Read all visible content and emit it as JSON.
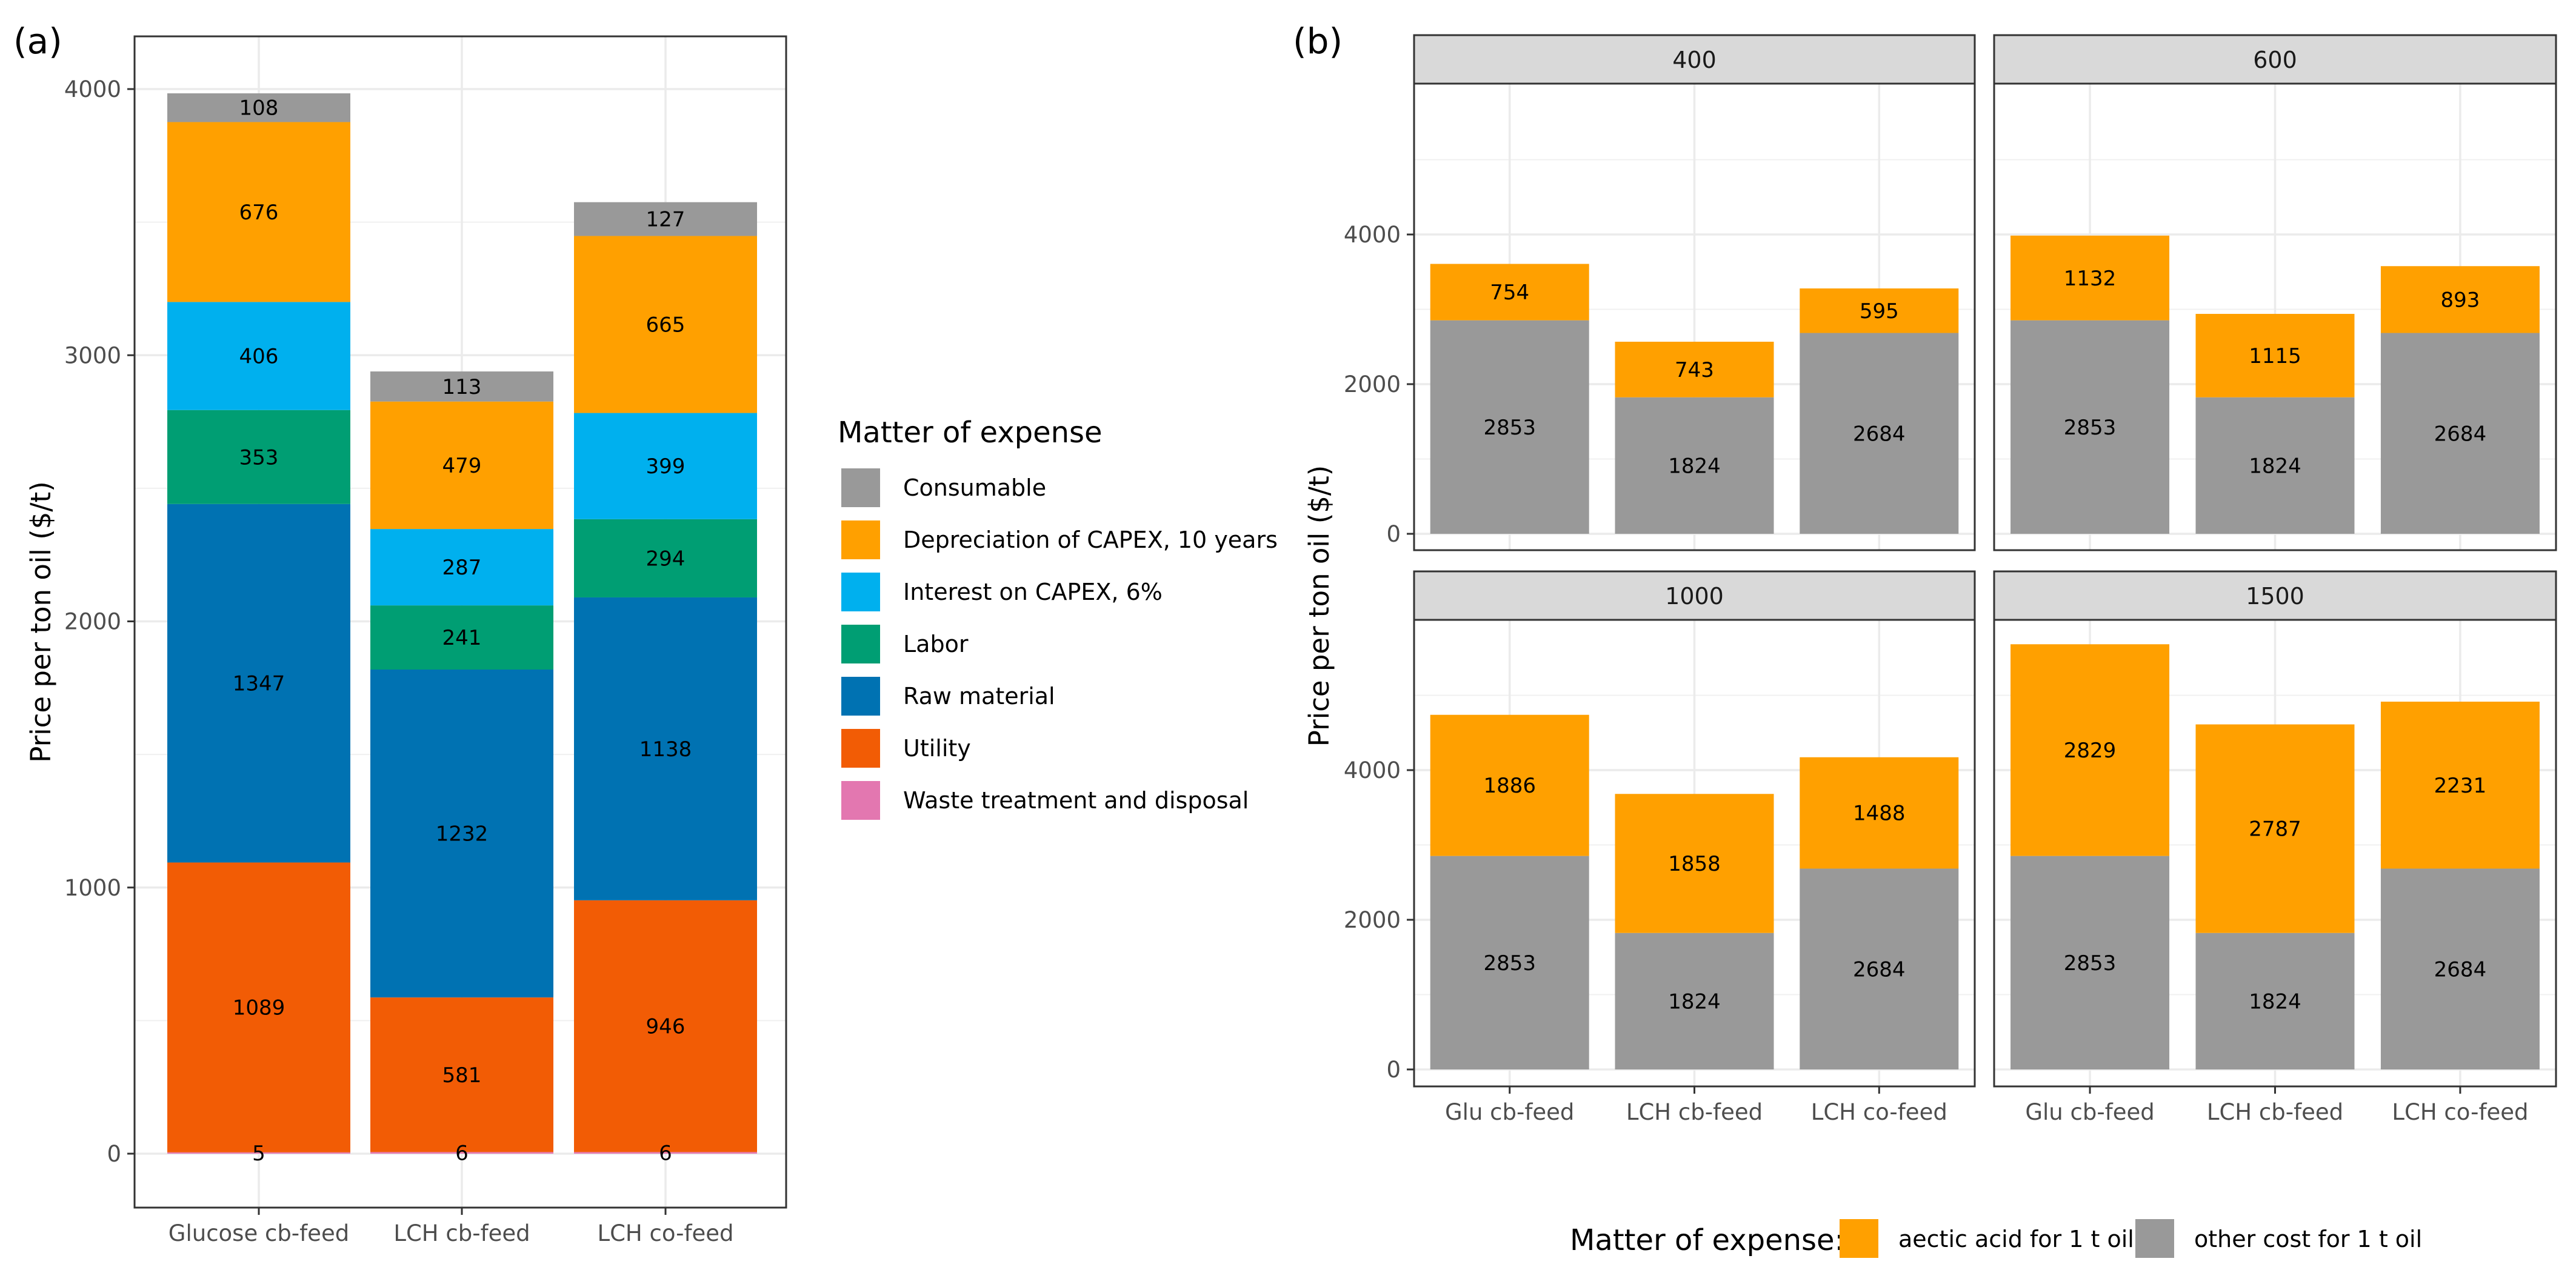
{
  "chart_data": [
    {
      "panel_label": "(a)",
      "type": "bar",
      "stacked": true,
      "categories": [
        "Glucose cb-feed",
        "LCH cb-feed",
        "LCH co-feed"
      ],
      "ylabel": "Price per ton oil ($/t)",
      "xlabel": "",
      "ylim": [
        0,
        4200
      ],
      "yticks": [
        0,
        1000,
        2000,
        3000,
        4000
      ],
      "grid": true,
      "legend": {
        "title": "Matter of expense",
        "position": "right"
      },
      "series": [
        {
          "name": "Waste treatment and disposal",
          "color": "#E377B0",
          "values": [
            5,
            6,
            6
          ],
          "labels": [
            "5",
            "6",
            "6"
          ]
        },
        {
          "name": "Utility",
          "color": "#F25C05",
          "values": [
            1089,
            581,
            946
          ],
          "labels": [
            "1089",
            "581",
            "946"
          ]
        },
        {
          "name": "Raw material",
          "color": "#0072B2",
          "values": [
            1347,
            1232,
            1138
          ],
          "labels": [
            "1347",
            "1232",
            "1138"
          ]
        },
        {
          "name": "Labor",
          "color": "#009E73",
          "values": [
            353,
            241,
            294
          ],
          "labels": [
            "353",
            "241",
            "294"
          ]
        },
        {
          "name": "Interest on CAPEX, 6%",
          "color": "#00B0EE",
          "values": [
            406,
            287,
            399
          ],
          "labels": [
            "406",
            "287",
            "399"
          ]
        },
        {
          "name": "Depreciation of CAPEX, 10 years",
          "color": "#FFA000",
          "values": [
            676,
            479,
            665
          ],
          "labels": [
            "676",
            "479",
            "665"
          ]
        },
        {
          "name": "Consumable",
          "color": "#999999",
          "values": [
            108,
            113,
            127
          ],
          "labels": [
            "108",
            "113",
            "127"
          ]
        }
      ],
      "legend_order": [
        "Consumable",
        "Depreciation of CAPEX, 10 years",
        "Interest on CAPEX, 6%",
        "Labor",
        "Raw material",
        "Utility",
        "Waste treatment and disposal"
      ]
    },
    {
      "panel_label": "(b)",
      "type": "bar",
      "stacked": true,
      "faceted": true,
      "categories": [
        "Glu cb-feed",
        "LCH cb-feed",
        "LCH co-feed"
      ],
      "ylabel": "Price per ton oil ($/t)",
      "xlabel": "",
      "ylim": [
        -250,
        5950
      ],
      "yticks": [
        0,
        2000,
        4000
      ],
      "grid": true,
      "legend": {
        "title": "Matter of expense:",
        "position": "bottom"
      },
      "series_meta": [
        {
          "name": "aectic acid for 1 t oil",
          "color": "#FFA000"
        },
        {
          "name": "other cost for 1 t oil",
          "color": "#999999"
        }
      ],
      "facets": [
        {
          "title": "400",
          "other": [
            2853,
            1824,
            2684
          ],
          "acid": [
            754,
            743,
            595
          ],
          "other_labels": [
            "2853",
            "1824",
            "2684"
          ],
          "acid_labels": [
            "754",
            "743",
            "595"
          ]
        },
        {
          "title": "600",
          "other": [
            2853,
            1824,
            2684
          ],
          "acid": [
            1132,
            1115,
            893
          ],
          "other_labels": [
            "2853",
            "1824",
            "2684"
          ],
          "acid_labels": [
            "1132",
            "1115",
            "893"
          ]
        },
        {
          "title": "1000",
          "other": [
            2853,
            1824,
            2684
          ],
          "acid": [
            1886,
            1858,
            1488
          ],
          "other_labels": [
            "2853",
            "1824",
            "2684"
          ],
          "acid_labels": [
            "1886",
            "1858",
            "1488"
          ]
        },
        {
          "title": "1500",
          "other": [
            2853,
            1824,
            2684
          ],
          "acid": [
            2829,
            2787,
            2231
          ],
          "other_labels": [
            "2853",
            "1824",
            "2684"
          ],
          "acid_labels": [
            "2829",
            "2787",
            "2231"
          ]
        }
      ]
    }
  ]
}
